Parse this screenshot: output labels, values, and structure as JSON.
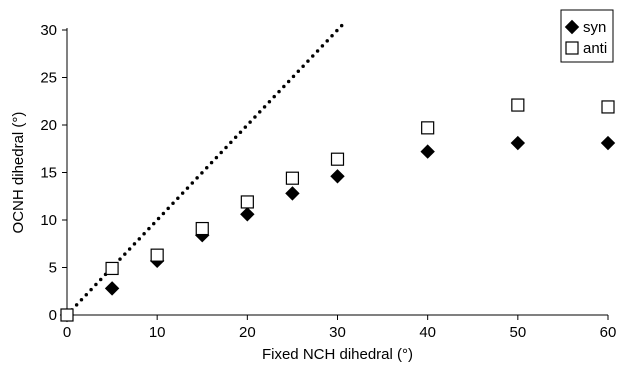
{
  "chart_data": {
    "type": "scatter",
    "xlabel": "Fixed NCH dihedral (°)",
    "ylabel": "OCNH dihedral (°)",
    "xlim": [
      0,
      60
    ],
    "ylim": [
      0,
      30
    ],
    "x_ticks": [
      "0",
      "10",
      "20",
      "30",
      "40",
      "50",
      "60"
    ],
    "y_ticks": [
      "0",
      "5",
      "10",
      "15",
      "20",
      "25",
      "30"
    ],
    "grid": false,
    "legend_position": "top-right",
    "series": [
      {
        "name": "syn",
        "marker": "filled-diamond",
        "color": "#000000",
        "x": [
          0,
          5,
          10,
          15,
          20,
          25,
          30,
          40,
          50,
          60
        ],
        "y": [
          0,
          2.8,
          5.7,
          8.4,
          10.6,
          12.8,
          14.6,
          17.2,
          18.1,
          18.1
        ]
      },
      {
        "name": "anti",
        "marker": "open-square",
        "color": "#000000",
        "x": [
          0,
          5,
          10,
          15,
          20,
          25,
          30,
          40,
          50,
          60
        ],
        "y": [
          0,
          4.9,
          6.3,
          9.1,
          11.9,
          14.4,
          16.4,
          19.7,
          22.1,
          21.9
        ]
      }
    ],
    "reference_line": {
      "style": "dotted",
      "x": [
        0,
        30.5
      ],
      "y": [
        0,
        30.5
      ]
    }
  }
}
